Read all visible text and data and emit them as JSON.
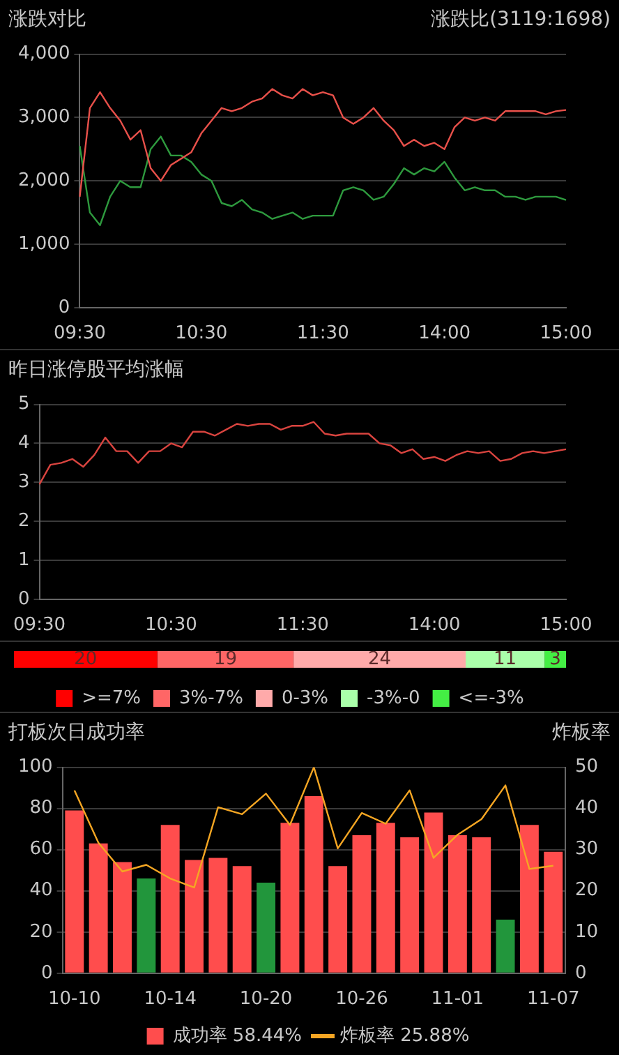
{
  "chart_data": [
    {
      "type": "line",
      "title": "涨跌对比",
      "subtitle": "涨跌比(3119:1698)",
      "categories": [
        "09:30",
        null,
        null,
        null,
        null,
        null,
        null,
        null,
        null,
        null,
        null,
        null,
        "10:30",
        null,
        null,
        null,
        null,
        null,
        null,
        null,
        null,
        null,
        null,
        null,
        "11:30",
        null,
        null,
        null,
        null,
        null,
        null,
        null,
        null,
        null,
        null,
        null,
        "14:00",
        null,
        null,
        null,
        null,
        null,
        null,
        null,
        null,
        null,
        null,
        null,
        "15:00"
      ],
      "series": [
        {
          "color": "#e8504a",
          "values": [
            1750,
            3150,
            3400,
            3150,
            2950,
            2650,
            2800,
            2200,
            2000,
            2250,
            2350,
            2450,
            2750,
            2950,
            3150,
            3100,
            3150,
            3250,
            3300,
            3450,
            3350,
            3300,
            3450,
            3350,
            3400,
            3350,
            3000,
            2900,
            3000,
            3150,
            2950,
            2800,
            2550,
            2650,
            2550,
            2600,
            2500,
            2850,
            3000,
            2950,
            3000,
            2950,
            3100,
            3100,
            3100,
            3100,
            3050,
            3100,
            3119
          ]
        },
        {
          "color": "#2e9a3e",
          "values": [
            2550,
            1500,
            1300,
            1750,
            2000,
            1900,
            1900,
            2500,
            2700,
            2400,
            2400,
            2300,
            2100,
            2000,
            1650,
            1600,
            1700,
            1550,
            1500,
            1400,
            1450,
            1500,
            1400,
            1450,
            1450,
            1450,
            1850,
            1900,
            1850,
            1700,
            1750,
            1950,
            2200,
            2100,
            2200,
            2150,
            2300,
            2050,
            1850,
            1900,
            1850,
            1850,
            1750,
            1750,
            1700,
            1750,
            1750,
            1750,
            1698
          ]
        }
      ],
      "ylim": [
        0,
        4000
      ],
      "yticks": [
        0,
        {
          "value": 1000,
          "label": "1,000"
        },
        {
          "value": 2000,
          "label": "2,000"
        },
        {
          "value": 3000,
          "label": "3,000"
        },
        {
          "value": 4000,
          "label": "4,000"
        }
      ],
      "grid": "y"
    },
    {
      "type": "line",
      "title": "昨日涨停股平均涨幅",
      "categories": [
        "09:30",
        null,
        null,
        null,
        null,
        null,
        null,
        null,
        null,
        null,
        null,
        null,
        "10:30",
        null,
        null,
        null,
        null,
        null,
        null,
        null,
        null,
        null,
        null,
        null,
        "11:30",
        null,
        null,
        null,
        null,
        null,
        null,
        null,
        null,
        null,
        null,
        null,
        "14:00",
        null,
        null,
        null,
        null,
        null,
        null,
        null,
        null,
        null,
        null,
        null,
        "15:00"
      ],
      "series": [
        {
          "color": "#d9443f",
          "values": [
            2.95,
            3.45,
            3.5,
            3.6,
            3.4,
            3.7,
            4.15,
            3.8,
            3.8,
            3.5,
            3.8,
            3.8,
            4.0,
            3.9,
            4.3,
            4.3,
            4.2,
            4.35,
            4.5,
            4.45,
            4.5,
            4.5,
            4.35,
            4.45,
            4.45,
            4.55,
            4.25,
            4.2,
            4.25,
            4.25,
            4.25,
            4.0,
            3.95,
            3.75,
            3.85,
            3.6,
            3.65,
            3.55,
            3.7,
            3.8,
            3.75,
            3.8,
            3.55,
            3.6,
            3.75,
            3.8,
            3.75,
            3.8,
            3.85
          ]
        }
      ],
      "ylim": [
        0,
        5
      ],
      "yticks": [
        0,
        1,
        2,
        3,
        4,
        5
      ],
      "grid": "y"
    },
    {
      "type": "bar",
      "orientation": "horizontal",
      "stacked": true,
      "categories": [
        null
      ],
      "series": [
        {
          "name": ">=7%",
          "color": "#ff0000",
          "values": [
            20
          ]
        },
        {
          "name": "3%-7%",
          "color": "#ff6666",
          "values": [
            19
          ]
        },
        {
          "name": "0-3%",
          "color": "#ffaaaa",
          "values": [
            24
          ]
        },
        {
          "name": "-3%-0",
          "color": "#aaffaa",
          "values": [
            11
          ]
        },
        {
          "name": "<=-3%",
          "color": "#44ee44",
          "values": [
            3
          ]
        }
      ],
      "data_labels": true,
      "legend": "bottom",
      "tick_labels": false
    },
    {
      "type": "bar",
      "title": "打板次日成功率",
      "y2label": "炸板率",
      "categories": [
        "10-10",
        null,
        null,
        null,
        "10-14",
        null,
        null,
        null,
        "10-20",
        null,
        null,
        null,
        "10-26",
        null,
        null,
        null,
        "11-01",
        null,
        null,
        null,
        "11-07"
      ],
      "series": [
        {
          "name": "成功率 58.44%",
          "colors": [
            "#ff4d4d",
            "#ff4d4d",
            "#ff4d4d",
            "#22963c",
            "#ff4d4d",
            "#ff4d4d",
            "#ff4d4d",
            "#ff4d4d",
            "#22963c",
            "#ff4d4d",
            "#ff4d4d",
            "#ff4d4d",
            "#ff4d4d",
            "#ff4d4d",
            "#ff4d4d",
            "#ff4d4d",
            "#ff4d4d",
            "#ff4d4d",
            "#22963c",
            "#ff4d4d",
            "#ff4d4d"
          ],
          "values": [
            79,
            63,
            54,
            46,
            72,
            55,
            56,
            52,
            44,
            73,
            86,
            52,
            67,
            73,
            66,
            78,
            67,
            66,
            26,
            72,
            59
          ]
        },
        {
          "type": "line",
          "name": "炸板率 25.88%",
          "color": "#f5a623",
          "axis": "y2",
          "values": [
            44.4,
            31.7,
            24.7,
            26.3,
            23,
            20.8,
            40.3,
            38.6,
            43.6,
            36,
            50,
            30.3,
            38.9,
            36.3,
            44.4,
            28,
            33.6,
            37.4,
            45.6,
            25.3,
            26.1
          ]
        }
      ],
      "ylim": [
        0,
        100
      ],
      "yticks": [
        0,
        20,
        40,
        60,
        80,
        100
      ],
      "y2lim": [
        0,
        50
      ],
      "y2ticks": [
        0,
        10,
        20,
        30,
        40,
        50
      ],
      "grid": "y",
      "legend": "bottom"
    }
  ]
}
